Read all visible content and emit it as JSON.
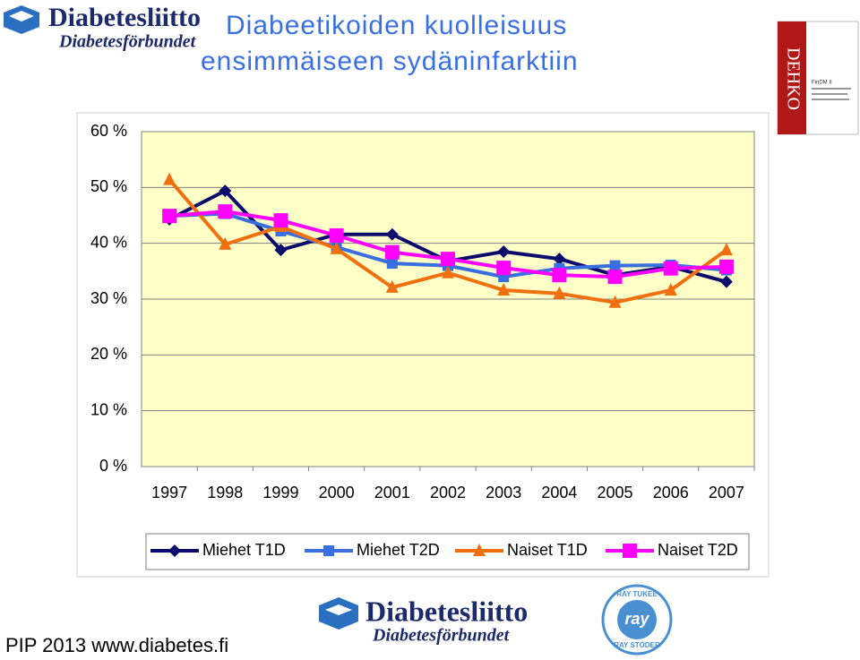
{
  "chart_data": {
    "type": "line",
    "title": [
      "Diabeetikoiden kuolleisuus",
      "ensimmäiseen sydäninfarktiin"
    ],
    "categories": [
      "1997",
      "1998",
      "1999",
      "2000",
      "2001",
      "2002",
      "2003",
      "2004",
      "2005",
      "2006",
      "2007"
    ],
    "series": [
      {
        "name": "Miehet T1D",
        "color": "#0b0b6e",
        "marker": "diamond",
        "values": [
          44.3,
          49.4,
          38.8,
          41.6,
          41.6,
          36.8,
          38.5,
          37.2,
          34.3,
          35.8,
          33.1
        ]
      },
      {
        "name": "Miehet T2D",
        "color": "#3a6fe0",
        "marker": "square",
        "values": [
          44.9,
          45.3,
          42.2,
          39.3,
          36.4,
          36.0,
          34.0,
          35.5,
          36.0,
          36.1,
          35.2
        ]
      },
      {
        "name": "Naiset T1D",
        "color": "#f07010",
        "marker": "triangle",
        "values": [
          51.4,
          39.8,
          43.0,
          39.0,
          32.1,
          34.7,
          31.6,
          31.0,
          29.4,
          31.6,
          38.8
        ]
      },
      {
        "name": "Naiset T2D",
        "color": "#ff00ff",
        "marker": "bigsquare",
        "values": [
          44.9,
          45.7,
          44.1,
          41.4,
          38.4,
          37.2,
          35.6,
          34.3,
          34.0,
          35.5,
          35.8
        ]
      }
    ],
    "ylim": [
      0,
      60
    ],
    "yticks": [
      {
        "value": 0,
        "label": "0 %"
      },
      {
        "value": 10,
        "label": "10 %"
      },
      {
        "value": 20,
        "label": "20 %"
      },
      {
        "value": 30,
        "label": "30 %"
      },
      {
        "value": 40,
        "label": "40 %"
      },
      {
        "value": 50,
        "label": "50 %"
      },
      {
        "value": 60,
        "label": "60 %"
      }
    ],
    "grid": true,
    "legend": "bottom",
    "plot_color": "#ffffc8"
  },
  "slide": {
    "logo_top": [
      "Diabetesliitto",
      "Diabetesförbundet"
    ],
    "logo_bottom": [
      "Diabetesliitto",
      "Diabetesförbundet"
    ],
    "footer": "PIP 2013 www.diabetes.fi",
    "ray_logo": [
      "RAY TUKEE",
      "ray",
      "RAY STÖDER"
    ],
    "report": {
      "spine": "DEHKO",
      "label": "FinDM II"
    }
  }
}
